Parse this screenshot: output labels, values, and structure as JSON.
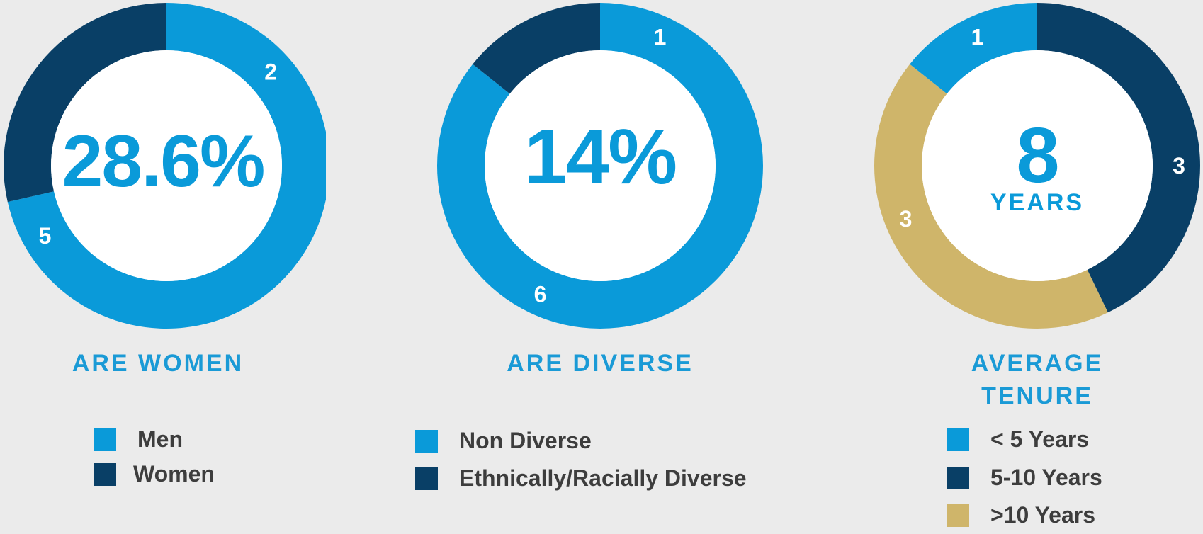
{
  "colors": {
    "light": "#0a9ad9",
    "dark": "#093f66",
    "gold": "#cfb56a",
    "inner": "#ffffff"
  },
  "chart_data": [
    {
      "type": "pie",
      "variant": "donut",
      "center_value": "28.6%",
      "caption": "ARE WOMEN",
      "categories": [
        "Men",
        "Women"
      ],
      "values": [
        5,
        2
      ],
      "slice_colors": [
        "#0a9ad9",
        "#093f66"
      ],
      "legend": [
        "Men",
        "Women"
      ]
    },
    {
      "type": "pie",
      "variant": "donut",
      "center_value": "14%",
      "caption": "ARE DIVERSE",
      "categories": [
        "Non Diverse",
        "Ethnically/Racially Diverse"
      ],
      "values": [
        6,
        1
      ],
      "slice_colors": [
        "#0a9ad9",
        "#093f66"
      ],
      "legend": [
        "Non Diverse",
        "Ethnically/Racially Diverse"
      ]
    },
    {
      "type": "pie",
      "variant": "donut",
      "center_value": "8",
      "center_unit": "YEARS",
      "caption": "AVERAGE TENURE",
      "caption_lines": [
        "AVERAGE",
        "TENURE"
      ],
      "categories": [
        "< 5 Years",
        "5-10 Years",
        ">10 Years"
      ],
      "values": [
        1,
        3,
        3
      ],
      "slice_colors": [
        "#0a9ad9",
        "#093f66",
        "#cfb56a"
      ],
      "legend": [
        "< 5 Years",
        "5-10 Years",
        ">10 Years"
      ]
    }
  ]
}
